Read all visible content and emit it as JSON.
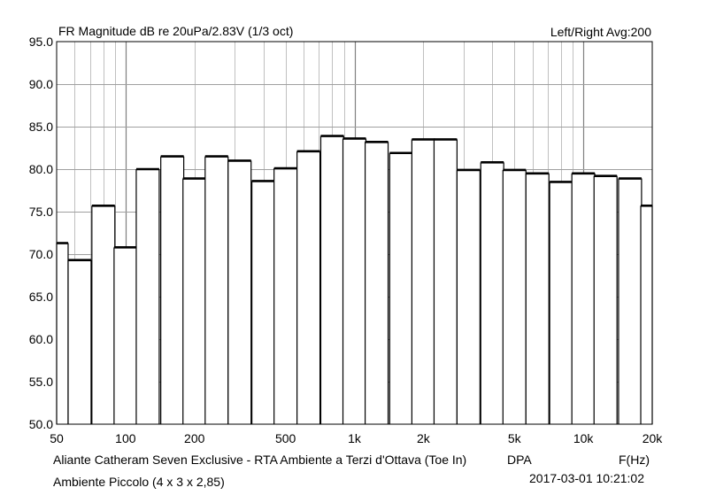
{
  "header": {
    "title": "FR Magnitude dB re 20uPa/2.83V (1/3 oct)",
    "right": "Left/Right  Avg:200"
  },
  "footer": {
    "line1": "Aliante Catheram Seven Exclusive - RTA Ambiente a Terzi d'Ottava (Toe In)",
    "line2": "Ambiente Piccolo (4 x 3 x 2,85)",
    "dpa": "DPA",
    "xunit": "F(Hz)",
    "datetime": "2017-03-01  10:21:02"
  },
  "chart_data": {
    "type": "bar",
    "title": "FR Magnitude dB re 20uPa/2.83V (1/3 oct)",
    "xlabel": "F(Hz)",
    "ylabel": "",
    "x_scale": "log",
    "xlim": [
      50,
      20000
    ],
    "ylim": [
      50,
      95
    ],
    "grid": true,
    "y_ticks": [
      "50.0",
      "55.0",
      "60.0",
      "65.0",
      "70.0",
      "75.0",
      "80.0",
      "85.0",
      "90.0",
      "95.0"
    ],
    "x_ticks": [
      {
        "value": 50,
        "label": "50"
      },
      {
        "value": 100,
        "label": "100"
      },
      {
        "value": 200,
        "label": "200"
      },
      {
        "value": 500,
        "label": "500"
      },
      {
        "value": 1000,
        "label": "1k"
      },
      {
        "value": 2000,
        "label": "2k"
      },
      {
        "value": 5000,
        "label": "5k"
      },
      {
        "value": 10000,
        "label": "10k"
      },
      {
        "value": 20000,
        "label": "20k"
      }
    ],
    "categories": [
      50,
      63,
      80,
      100,
      125,
      160,
      200,
      250,
      315,
      400,
      500,
      630,
      800,
      1000,
      1250,
      1600,
      2000,
      2500,
      3150,
      4000,
      5000,
      6300,
      8000,
      10000,
      12500,
      16000,
      20000
    ],
    "values": [
      71.3,
      69.3,
      75.7,
      70.8,
      80.0,
      81.5,
      78.9,
      81.5,
      81.0,
      78.6,
      80.1,
      82.1,
      83.9,
      83.6,
      83.2,
      81.9,
      83.5,
      83.5,
      79.9,
      80.8,
      79.9,
      79.5,
      78.5,
      79.5,
      79.2,
      78.9,
      75.7
    ]
  }
}
